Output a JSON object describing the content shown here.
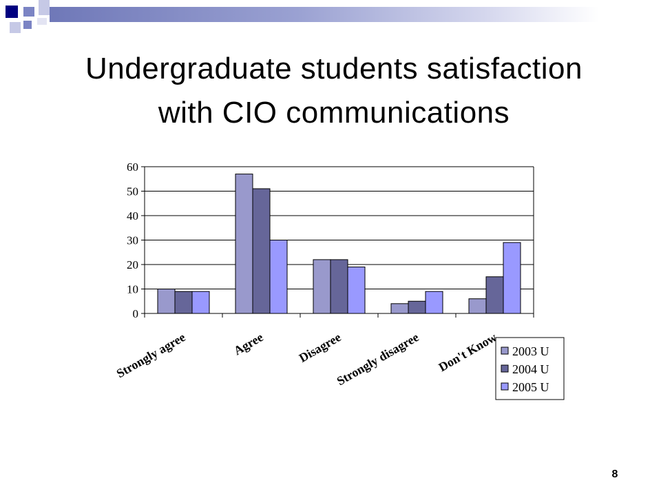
{
  "slide": {
    "title_line1": "Undergraduate students satisfaction",
    "title_line2": "with CIO communications",
    "page_number": "8"
  },
  "colors": {
    "corner_navy": "#000080",
    "corner_blue": "#7b84c4",
    "corner_light": "#c6c9e6",
    "header_bar": "#8088c0"
  },
  "chart_data": {
    "type": "bar",
    "categories": [
      "Strongly agree",
      "Agree",
      "Disagree",
      "Strongly disagree",
      "Don't Know"
    ],
    "series": [
      {
        "name": "2003 U",
        "values": [
          10,
          57,
          22,
          4,
          6
        ],
        "color": "#9999cc"
      },
      {
        "name": "2004 U",
        "values": [
          9,
          51,
          22,
          5,
          15
        ],
        "color": "#666699"
      },
      {
        "name": "2005 U",
        "values": [
          9,
          30,
          19,
          9,
          29
        ],
        "color": "#9999ff"
      }
    ],
    "y_ticks": [
      "0",
      "10",
      "20",
      "30",
      "40",
      "50",
      "60"
    ],
    "ylim": [
      0,
      60
    ],
    "grid": true,
    "legend": "bottom-right"
  }
}
